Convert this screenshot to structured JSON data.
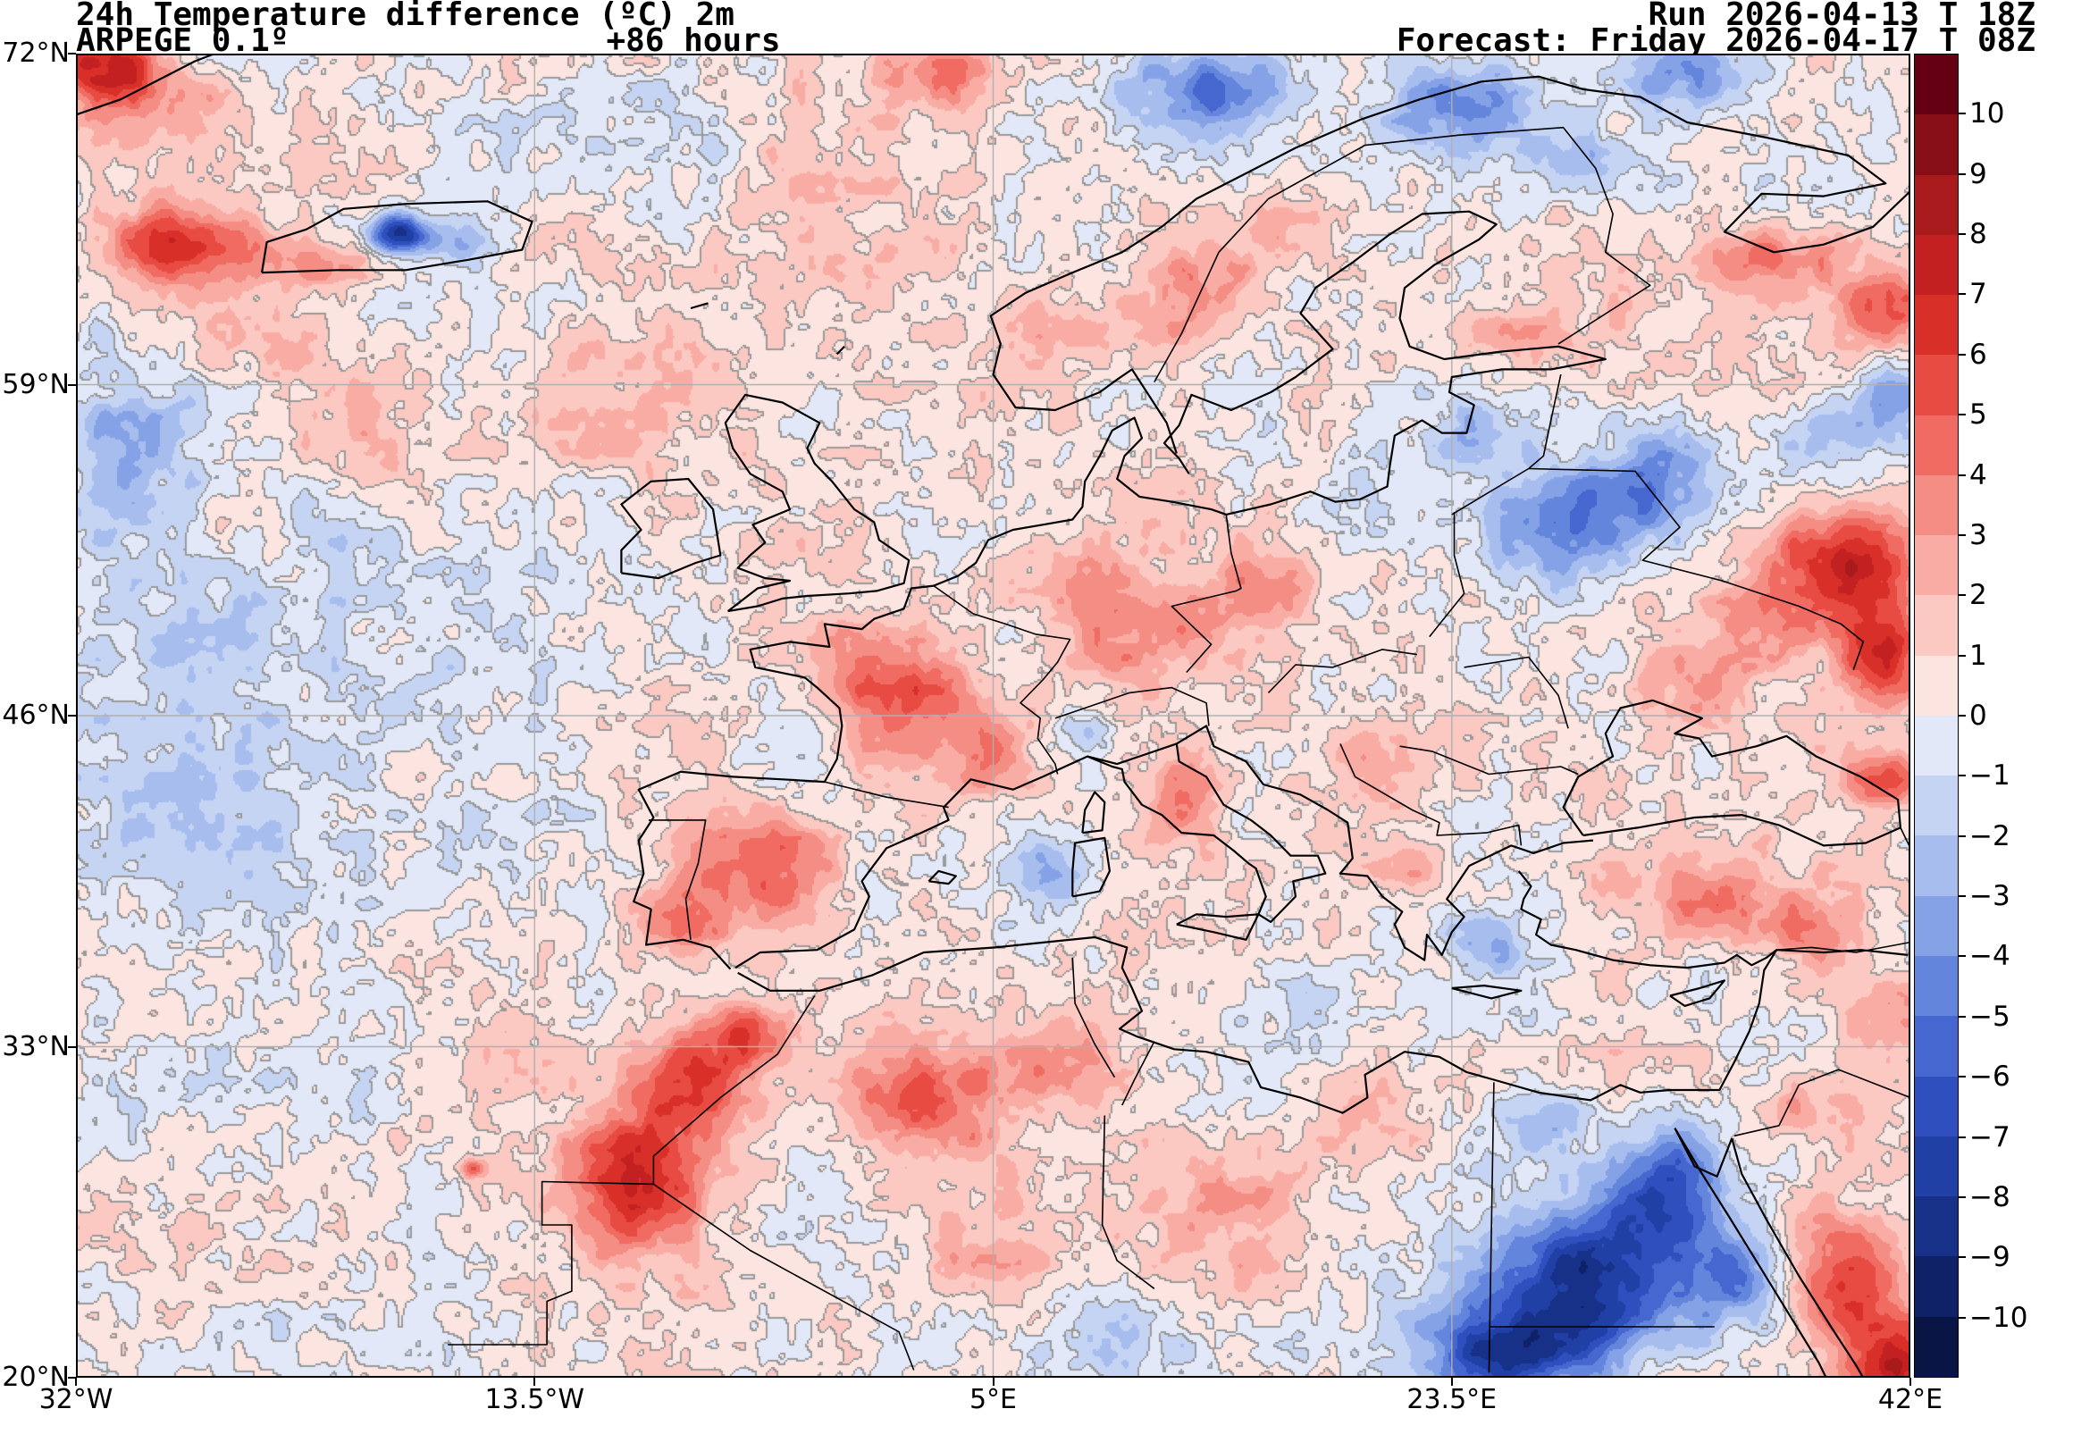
{
  "header": {
    "title": "24h Temperature difference (ºC) 2m",
    "model": "ARPEGE 0.1º",
    "lead": "+86 hours",
    "run": "Run 2026-04-13 T 18Z",
    "forecast": "Forecast: Friday 2026-04-17 T 08Z"
  },
  "axes": {
    "lat_labels": [
      "72°N",
      "59°N",
      "46°N",
      "33°N",
      "20°N"
    ],
    "lat_values": [
      72,
      59,
      46,
      33,
      20
    ],
    "lon_labels": [
      "32°W",
      "13.5°W",
      "5°E",
      "23.5°E",
      "42°E"
    ],
    "lon_values": [
      -32,
      -13.5,
      5,
      23.5,
      42
    ],
    "grid_lat": [
      59,
      46,
      33
    ],
    "grid_lon": [
      -13.5,
      5,
      23.5
    ]
  },
  "colorbar": {
    "tick_labels": [
      "10",
      "9",
      "8",
      "7",
      "6",
      "5",
      "4",
      "3",
      "2",
      "1",
      "0",
      "−1",
      "−2",
      "−3",
      "−4",
      "−5",
      "−6",
      "−7",
      "−8",
      "−9",
      "−10"
    ],
    "colors": [
      "#650013",
      "#870e16",
      "#a81a1b",
      "#c32121",
      "#d92f29",
      "#e84b42",
      "#f06b61",
      "#f48d83",
      "#f8aca4",
      "#fbc8c2",
      "#fce4e0",
      "#e2e8f8",
      "#c6d4f4",
      "#a7bdee",
      "#86a2e7",
      "#6485dc",
      "#4567cf",
      "#2e4fbd",
      "#2040a5",
      "#173188",
      "#0f2268",
      "#081545"
    ],
    "contour_gray": "#9a9a9a"
  },
  "chart_data": {
    "type": "heatmap",
    "title": "24h Temperature difference (ºC) 2m",
    "model": "ARPEGE 0.1º",
    "lead_hours": 86,
    "run_time": "2026-04-13 18Z",
    "valid_time": "Friday 2026-04-17 08Z",
    "units": "°C",
    "lon_range": [
      -32,
      42
    ],
    "lat_range": [
      20,
      72
    ],
    "value_range": [
      -10,
      10
    ],
    "base_value": 0.5,
    "anomaly_features": [
      [
        -24,
        50,
        9,
        8,
        -1.4
      ],
      [
        -28,
        43,
        5,
        4,
        -1.8
      ],
      [
        -26,
        34,
        6,
        5,
        -1.0
      ],
      [
        -30,
        57,
        4,
        3.5,
        -2.2
      ],
      [
        -16,
        47,
        4,
        4,
        -0.9
      ],
      [
        -13,
        41,
        3,
        3,
        -1.2
      ],
      [
        -20,
        57,
        5,
        2.5,
        1.8
      ],
      [
        -25,
        60.5,
        4,
        2,
        1.4
      ],
      [
        -10,
        57,
        3,
        2.5,
        1.2
      ],
      [
        -28,
        64.5,
        3,
        1.6,
        6
      ],
      [
        -22,
        63.6,
        2.2,
        1,
        3.5
      ],
      [
        -19,
        64.9,
        1.3,
        0.8,
        -9
      ],
      [
        -16.5,
        64.6,
        1.2,
        0.8,
        -3.5
      ],
      [
        -31,
        71.5,
        2.5,
        1.5,
        7
      ],
      [
        -28,
        69.5,
        3,
        2,
        2.5
      ],
      [
        -12,
        69,
        6,
        2.5,
        -1.6
      ],
      [
        0,
        66,
        5,
        3,
        1.4
      ],
      [
        3,
        71,
        2.5,
        1.4,
        3.5
      ],
      [
        8,
        61,
        2,
        1.5,
        2.2
      ],
      [
        13,
        62.5,
        2.5,
        2,
        3.5
      ],
      [
        17,
        65,
        2,
        1.5,
        2.5
      ],
      [
        26,
        61,
        2.5,
        1.5,
        2.2
      ],
      [
        14,
        70.5,
        3.5,
        1.8,
        -5.5
      ],
      [
        24,
        70,
        3.5,
        2,
        -5
      ],
      [
        33,
        71.2,
        3.5,
        1.5,
        -4
      ],
      [
        29,
        67.5,
        2.5,
        1.5,
        -3
      ],
      [
        36,
        64,
        3,
        1.2,
        3.5
      ],
      [
        41,
        62,
        1.8,
        1.8,
        4.5
      ],
      [
        41,
        58,
        2,
        2,
        -4
      ],
      [
        38,
        56.5,
        2,
        1.5,
        -2.5
      ],
      [
        28,
        53.5,
        3.5,
        2.2,
        -5
      ],
      [
        24,
        57,
        2.5,
        1.8,
        -3
      ],
      [
        32,
        55.5,
        2.5,
        2,
        -4
      ],
      [
        20,
        55,
        2,
        1.5,
        -1.5
      ],
      [
        39,
        52,
        3,
        2,
        7
      ],
      [
        41,
        48.5,
        1.8,
        2,
        6.5
      ],
      [
        36,
        49.5,
        2,
        1.5,
        2.5
      ],
      [
        33,
        47,
        2,
        1.5,
        2
      ],
      [
        41,
        43.5,
        1.5,
        1.2,
        5
      ],
      [
        -2,
        53,
        2.5,
        2.5,
        1.2
      ],
      [
        1.5,
        46.8,
        2.8,
        2.2,
        4.5
      ],
      [
        -0.5,
        48.5,
        2,
        1.5,
        2.5
      ],
      [
        5,
        44.5,
        1.5,
        1.5,
        2.5
      ],
      [
        10,
        49.5,
        3,
        2,
        3
      ],
      [
        16,
        51,
        2.5,
        2,
        2.5
      ],
      [
        7,
        51.5,
        2,
        1.5,
        2
      ],
      [
        9,
        45.3,
        1.3,
        0.8,
        -2.5
      ],
      [
        -4.5,
        40,
        3,
        2.2,
        4
      ],
      [
        -7.5,
        38,
        2,
        1.5,
        3
      ],
      [
        0,
        39,
        1,
        1,
        -1.5
      ],
      [
        7.5,
        40,
        1.8,
        1.6,
        -2.5
      ],
      [
        12.5,
        42.5,
        1.4,
        1.8,
        3.5
      ],
      [
        20,
        44,
        2,
        2,
        3
      ],
      [
        22,
        40,
        1.5,
        1.2,
        2.5
      ],
      [
        25,
        37.3,
        1.8,
        1.3,
        -3.5
      ],
      [
        27,
        35,
        2,
        1.5,
        -1.5
      ],
      [
        18,
        34.8,
        2.2,
        1.5,
        -1.5
      ],
      [
        34,
        38.5,
        2.5,
        1.5,
        3
      ],
      [
        38,
        37.5,
        2,
        1.5,
        3
      ],
      [
        30,
        39.5,
        1.5,
        1.2,
        2
      ],
      [
        41,
        34,
        2,
        2,
        2.5
      ],
      [
        38,
        30.5,
        2,
        1.5,
        2
      ],
      [
        -7,
        31.5,
        2.5,
        2,
        5.5
      ],
      [
        -9.5,
        27.5,
        2.5,
        2.5,
        6.5
      ],
      [
        -5,
        33.5,
        1.8,
        1.3,
        4
      ],
      [
        -16,
        28.2,
        0.5,
        0.35,
        4
      ],
      [
        2,
        31,
        3.5,
        2.5,
        4.5
      ],
      [
        8,
        32.5,
        2.5,
        2,
        3
      ],
      [
        15,
        27,
        4,
        3,
        2.5
      ],
      [
        20,
        30,
        3,
        2,
        2
      ],
      [
        5,
        25,
        4,
        2.5,
        2
      ],
      [
        10,
        21,
        4,
        2,
        -2
      ],
      [
        17,
        21.5,
        3,
        1.5,
        -1
      ],
      [
        29,
        24,
        4,
        3,
        -8.5
      ],
      [
        25.5,
        21,
        3.5,
        2,
        -7
      ],
      [
        32.5,
        27.5,
        2.5,
        2.5,
        -6
      ],
      [
        27,
        30,
        2.5,
        1.5,
        -3
      ],
      [
        35,
        24,
        2,
        2,
        -4
      ],
      [
        39.5,
        23.5,
        2.2,
        2.5,
        6
      ],
      [
        41.5,
        20.5,
        1.8,
        1.5,
        7
      ]
    ]
  }
}
